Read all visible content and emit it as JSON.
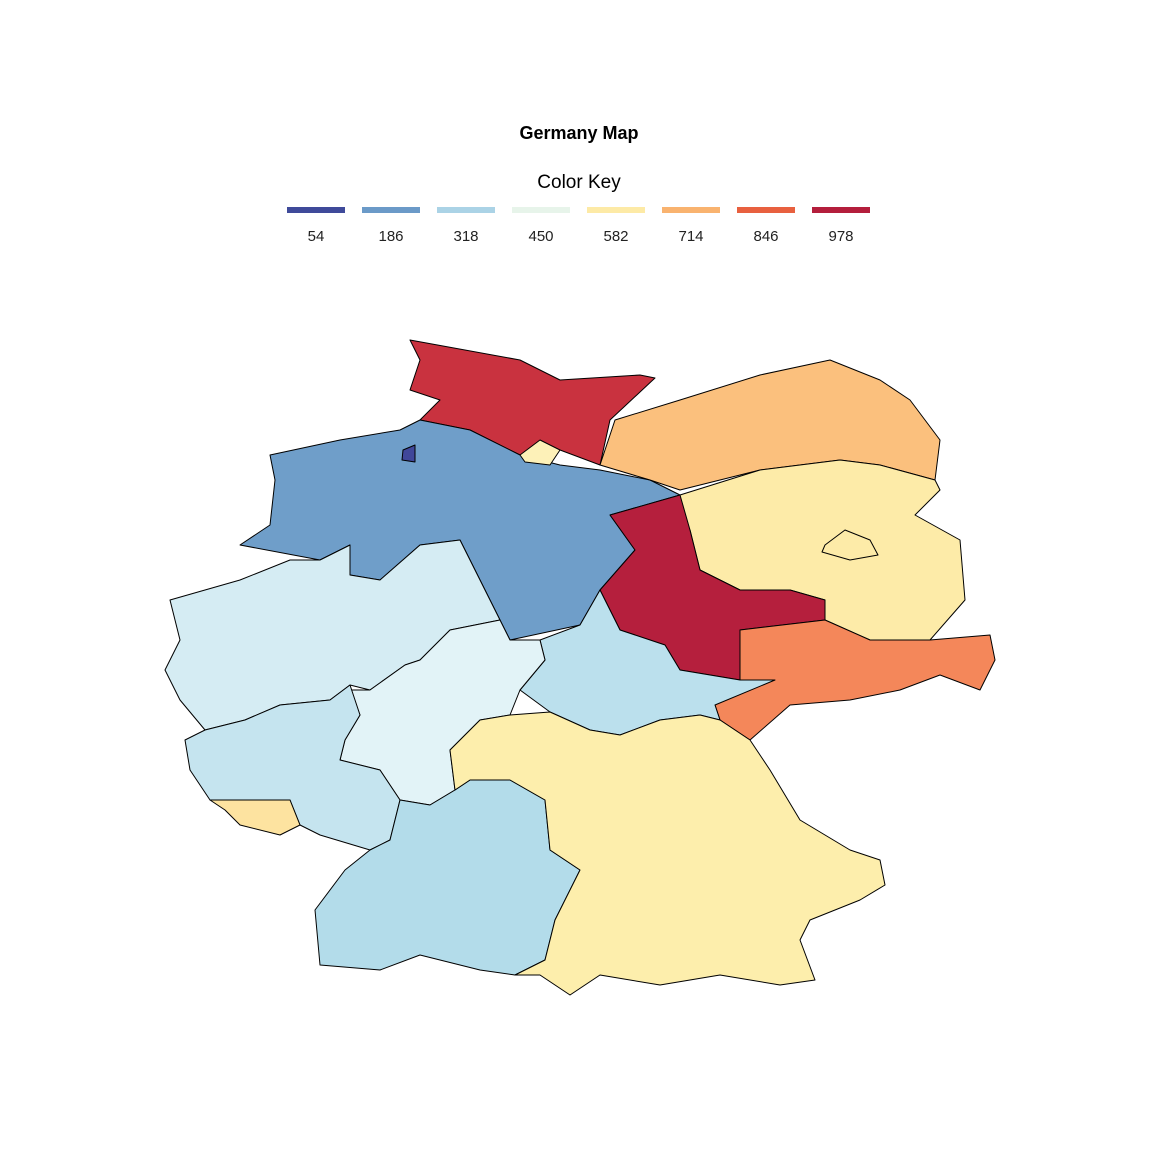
{
  "map": {
    "title": "Germany Map",
    "legend": {
      "title": "Color Key",
      "items": [
        {
          "value": 54,
          "color": "#3f4a9a"
        },
        {
          "value": 186,
          "color": "#6b9ac8"
        },
        {
          "value": 318,
          "color": "#abd3e6"
        },
        {
          "value": 450,
          "color": "#e7f4ea"
        },
        {
          "value": 582,
          "color": "#fdeaa6"
        },
        {
          "value": 714,
          "color": "#f9b36f"
        },
        {
          "value": 846,
          "color": "#e8603f"
        },
        {
          "value": 978,
          "color": "#b41e3c"
        }
      ]
    },
    "regions": [
      {
        "value": 930,
        "color": "#c9323f"
      },
      {
        "value": 560,
        "color": "#fdf1b8"
      },
      {
        "value": 54,
        "color": "#40479a"
      },
      {
        "value": 190,
        "color": "#6f9ec9"
      },
      {
        "value": 700,
        "color": "#fbc07d"
      },
      {
        "value": 585,
        "color": "#fdeba8"
      },
      {
        "value": 585,
        "color": "#fdeba8"
      },
      {
        "value": 978,
        "color": "#b51f3d"
      },
      {
        "value": 800,
        "color": "#f4875a"
      },
      {
        "value": 330,
        "color": "#bbe0ed"
      },
      {
        "value": 390,
        "color": "#d5ecf3"
      },
      {
        "value": 410,
        "color": "#e2f3f7"
      },
      {
        "value": 360,
        "color": "#c5e4ef"
      },
      {
        "value": 600,
        "color": "#fde3a0"
      },
      {
        "value": 320,
        "color": "#b3dcea"
      },
      {
        "value": 580,
        "color": "#fdeeac"
      }
    ]
  }
}
